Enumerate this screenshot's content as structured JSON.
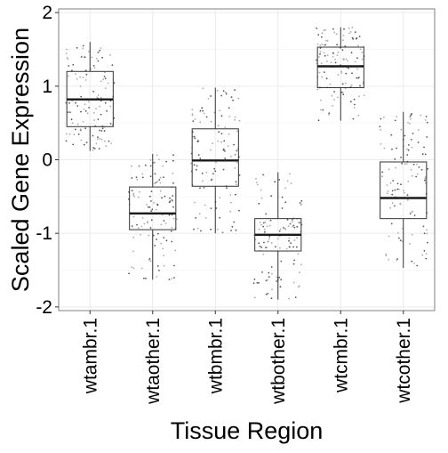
{
  "chart_data": {
    "type": "boxplot",
    "xlabel": "Tissue Region",
    "ylabel": "Scaled Gene Expression",
    "ylim": [
      -2.05,
      2.05
    ],
    "y_ticks": [
      -2,
      -1,
      0,
      1,
      2
    ],
    "y_tick_labels": [
      "-2",
      "-1",
      "0",
      "1",
      "2"
    ],
    "categories": [
      "wtambr.1",
      "wtaother.1",
      "wtbmbr.1",
      "wtbother.1",
      "wtcmbr.1",
      "wtcother.1"
    ],
    "boxes": [
      {
        "category": "wtambr.1",
        "min": 0.12,
        "q1": 0.45,
        "median": 0.82,
        "q3": 1.2,
        "max": 1.6
      },
      {
        "category": "wtaother.1",
        "min": -1.63,
        "q1": -0.95,
        "median": -0.73,
        "q3": -0.37,
        "max": 0.08
      },
      {
        "category": "wtbmbr.1",
        "min": -1.0,
        "q1": -0.36,
        "median": -0.01,
        "q3": 0.42,
        "max": 0.98
      },
      {
        "category": "wtbother.1",
        "min": -1.9,
        "q1": -1.24,
        "median": -1.02,
        "q3": -0.8,
        "max": -0.17
      },
      {
        "category": "wtcmbr.1",
        "min": 0.53,
        "q1": 0.98,
        "median": 1.27,
        "q3": 1.53,
        "max": 1.8
      },
      {
        "category": "wtcother.1",
        "min": -1.47,
        "q1": -0.8,
        "median": -0.52,
        "q3": -0.03,
        "max": 0.65
      }
    ],
    "jittered_points": true,
    "grid": true,
    "colors": {
      "box_outline": "#333333",
      "median": "#1a1a1a",
      "points": "#555555",
      "grid": "#ebebeb",
      "panel_border": "#7f7f7f"
    }
  }
}
